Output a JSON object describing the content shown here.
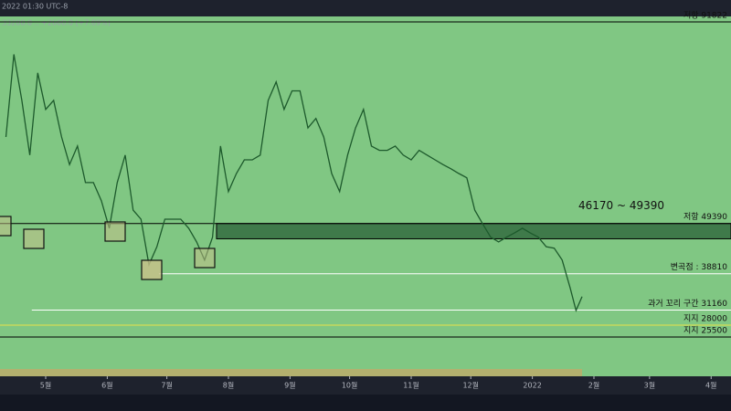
{
  "header": {
    "time": "2022 01:30 UTC-8",
    "quote": "33200.0  ..  +2600.0 (+7.89%)"
  },
  "chart_data": {
    "type": "line",
    "x": [
      10,
      14,
      18,
      22,
      26,
      30,
      34,
      38,
      42,
      46,
      50,
      54,
      58,
      62,
      66,
      70,
      74,
      78,
      82,
      86,
      90,
      94,
      98,
      102,
      106,
      110,
      114,
      118,
      122,
      126,
      130,
      134,
      138,
      142,
      146,
      150,
      154,
      158,
      162,
      166,
      170,
      174,
      178,
      182,
      186,
      190,
      194,
      198,
      202,
      206,
      210,
      214,
      218,
      222,
      226,
      230,
      234,
      238,
      242,
      246,
      250,
      254,
      258,
      262,
      266,
      270,
      274,
      278,
      282,
      286,
      290,
      294,
      297,
      300
    ],
    "series": [
      {
        "color": "#1d5a2c",
        "values": [
          67600,
          85000,
          75300,
          63800,
          81100,
          73400,
          75300,
          67600,
          61800,
          65700,
          58000,
          58000,
          54200,
          48400,
          58000,
          63800,
          52200,
          50300,
          40700,
          44500,
          50300,
          50300,
          50300,
          48400,
          45500,
          41700,
          46500,
          65700,
          56100,
          59900,
          62800,
          62800,
          63800,
          75300,
          79200,
          73400,
          77300,
          77300,
          69500,
          71500,
          67600,
          59900,
          56100,
          63800,
          69500,
          73400,
          65700,
          64800,
          64800,
          65700,
          63800,
          62800,
          64800,
          63800,
          62800,
          61800,
          60900,
          59900,
          59000,
          52200,
          49300,
          46500,
          45500,
          46500,
          47400,
          48400,
          47400,
          46500,
          44500,
          44200,
          41700,
          35900,
          31100,
          34000
        ]
      }
    ],
    "xlim": [
      7,
      375
    ],
    "ylim": [
      17230,
      92975
    ],
    "xticks": [
      {
        "value": 30,
        "label": "5월"
      },
      {
        "value": 61,
        "label": "6월"
      },
      {
        "value": 91,
        "label": "7월"
      },
      {
        "value": 122,
        "label": "8월"
      },
      {
        "value": 153,
        "label": "9월"
      },
      {
        "value": 183,
        "label": "10월"
      },
      {
        "value": 214,
        "label": "11월"
      },
      {
        "value": 244,
        "label": "12월"
      },
      {
        "value": 275,
        "label": "2022"
      },
      {
        "value": 306,
        "label": "2월"
      },
      {
        "value": 334,
        "label": "3월"
      },
      {
        "value": 365,
        "label": "4월"
      }
    ],
    "levels": [
      {
        "label": "저항 91822",
        "value": 91822,
        "color": "#000000",
        "start": 7
      },
      {
        "label": "저항 49390",
        "value": 49390,
        "color": "#000000",
        "start": 7
      },
      {
        "label": "변곡점 : 38810",
        "value": 38810,
        "color": "#ffffff",
        "start": 87
      },
      {
        "label": "과거 꼬리 구간 31160",
        "value": 31160,
        "color": "#ffffff",
        "start": 23
      },
      {
        "label": "지지 28000",
        "value": 28000,
        "color": "#e8e04a",
        "start": 7
      },
      {
        "label": "지지 25500",
        "value": 25500,
        "color": "#000000",
        "start": 7
      }
    ],
    "zone": {
      "label": "46170 ~ 49390",
      "low": 46170,
      "high": 49390,
      "start": 116
    }
  }
}
